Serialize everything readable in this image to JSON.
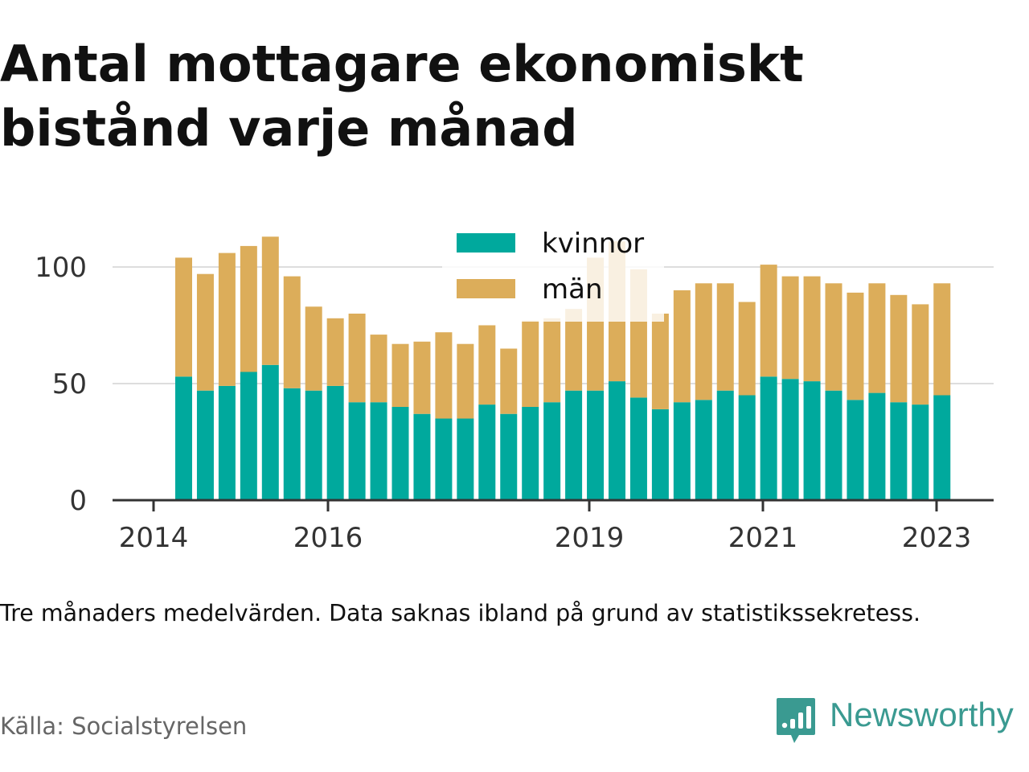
{
  "title": "Antal mottagare ekonomiskt bistånd varje månad",
  "note": "Tre månaders medelvärden. Data saknas ibland på grund av statistikssekretess.",
  "source": "Källa: Socialstyrelsen",
  "brand": {
    "name": "Newsworthy",
    "icon": "newsworthy-logo-icon",
    "color": "#3a9a91"
  },
  "chart_data": {
    "type": "bar",
    "stacked": true,
    "ylim": [
      0,
      112
    ],
    "yticks": [
      0,
      50,
      100
    ],
    "ytick_labels": [
      "0",
      "50",
      "100"
    ],
    "xtick_labels": [
      "2014",
      "2016",
      "2019",
      "2021",
      "2023"
    ],
    "grid": true,
    "legend_position": "top-center",
    "categories": [
      "2014-Q2",
      "2014-Q3",
      "2014-Q4",
      "2015-Q1",
      "2015-Q2",
      "2015-Q3",
      "2015-Q4",
      "2016-Q1",
      "2016-Q2",
      "2016-Q3",
      "2016-Q4",
      "2017-Q1",
      "2017-Q2",
      "2017-Q3",
      "2017-Q4",
      "2018-Q1",
      "2018-Q2",
      "2018-Q3",
      "2018-Q4",
      "2019-Q1",
      "2019-Q2",
      "2019-Q3",
      "2019-Q4",
      "2020-Q1",
      "2020-Q2",
      "2020-Q3",
      "2020-Q4",
      "2021-Q1",
      "2021-Q2",
      "2021-Q3",
      "2021-Q4",
      "2022-Q1",
      "2022-Q2",
      "2022-Q3",
      "2022-Q4",
      "2023-Q1"
    ],
    "series": [
      {
        "name": "kvinnor",
        "color": "#00a99d",
        "values": [
          53,
          47,
          49,
          55,
          58,
          48,
          47,
          49,
          42,
          42,
          40,
          37,
          35,
          35,
          41,
          37,
          40,
          42,
          47,
          47,
          51,
          44,
          39,
          42,
          43,
          47,
          45,
          53,
          52,
          51,
          47,
          43,
          46,
          42,
          41,
          45
        ]
      },
      {
        "name": "män",
        "color": "#dcad5a",
        "values": [
          51,
          50,
          57,
          54,
          55,
          48,
          36,
          29,
          38,
          29,
          27,
          31,
          37,
          32,
          34,
          28,
          37,
          36,
          35,
          57,
          60,
          55,
          41,
          48,
          50,
          46,
          40,
          48,
          44,
          45,
          46,
          46,
          47,
          46,
          43,
          48
        ]
      }
    ]
  }
}
